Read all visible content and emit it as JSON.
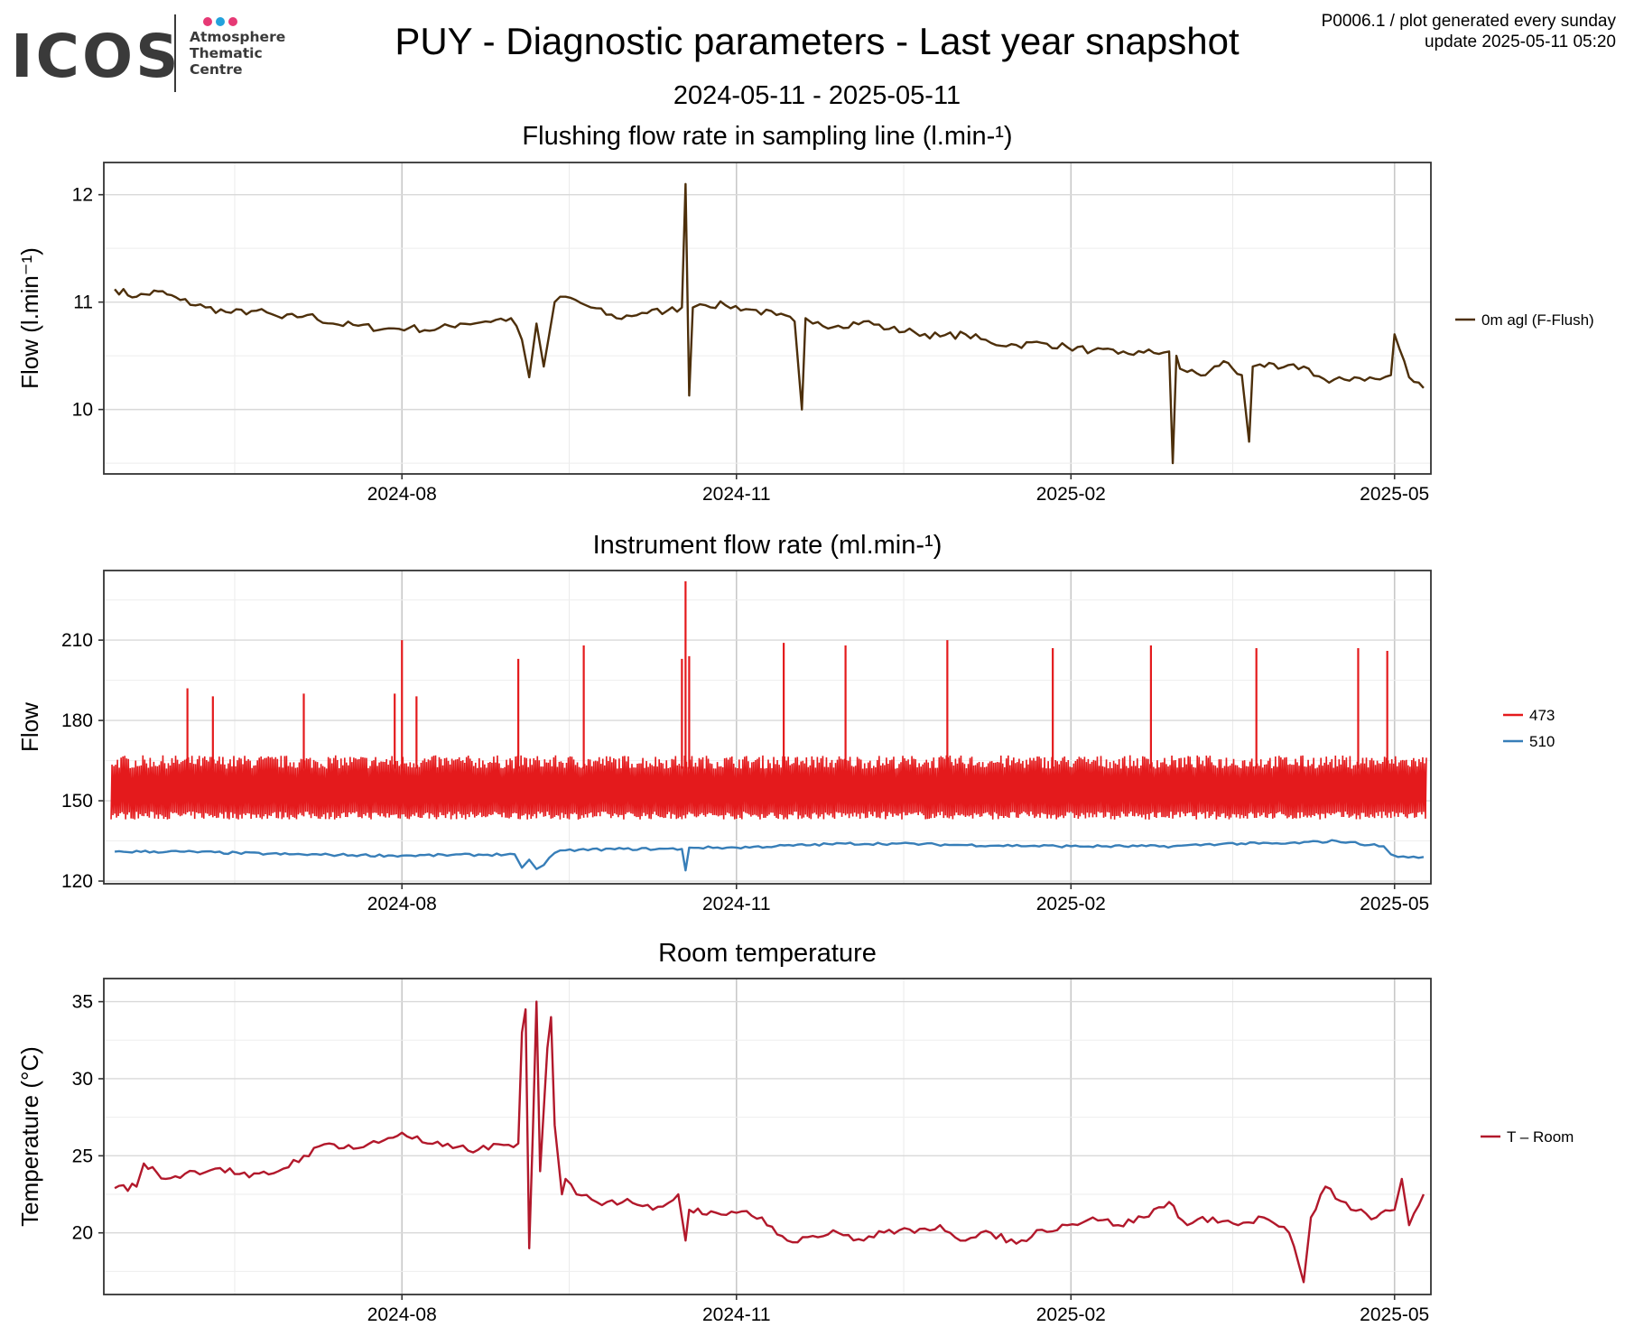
{
  "logo": {
    "word": "ICOS",
    "lines": [
      "Atmosphere",
      "Thematic",
      "Centre"
    ],
    "dot_colors": [
      "#e63975",
      "#23a2dc",
      "#e63975"
    ]
  },
  "header": {
    "title": "PUY - Diagnostic parameters - Last year snapshot",
    "date_range": "2024-05-11 - 2025-05-11",
    "meta_line1": "P0006.1 / plot generated every sunday",
    "meta_line2": "update  2025-05-11 05:20"
  },
  "chart_data": [
    {
      "type": "line",
      "title": "Flushing flow rate in sampling line (l.min-¹)",
      "ylabel": "Flow (l.min⁻¹)",
      "ylim": [
        9.4,
        12.3
      ],
      "yticks": [
        10,
        11,
        12
      ],
      "xlim": [
        "2024-05-11",
        "2025-05-11"
      ],
      "xticks": [
        "2024-08-01",
        "2024-11-01",
        "2025-02-01",
        "2025-05-01"
      ],
      "xtick_labels": [
        "2024-08",
        "2024-11",
        "2025-02",
        "2025-05"
      ],
      "grid": true,
      "legend": "right",
      "series": [
        {
          "name": "0m agl (F-Flush)",
          "color": "#4d2f0a",
          "x": [
            "2024-05-14",
            "2024-05-20",
            "2024-05-26",
            "2024-06-01",
            "2024-06-08",
            "2024-06-15",
            "2024-06-22",
            "2024-06-29",
            "2024-07-06",
            "2024-07-13",
            "2024-07-20",
            "2024-07-27",
            "2024-08-03",
            "2024-08-10",
            "2024-08-17",
            "2024-08-24",
            "2024-08-31",
            "2024-09-03",
            "2024-09-05",
            "2024-09-07",
            "2024-09-09",
            "2024-09-12",
            "2024-09-15",
            "2024-09-22",
            "2024-09-29",
            "2024-10-06",
            "2024-10-13",
            "2024-10-17",
            "2024-10-18",
            "2024-10-19",
            "2024-10-20",
            "2024-10-22",
            "2024-10-29",
            "2024-11-05",
            "2024-11-12",
            "2024-11-17",
            "2024-11-19",
            "2024-11-20",
            "2024-11-22",
            "2024-11-29",
            "2024-12-06",
            "2024-12-13",
            "2024-12-20",
            "2024-12-27",
            "2025-01-03",
            "2025-01-10",
            "2025-01-17",
            "2025-01-24",
            "2025-01-31",
            "2025-02-07",
            "2025-02-14",
            "2025-02-21",
            "2025-02-28",
            "2025-03-01",
            "2025-03-02",
            "2025-03-03",
            "2025-03-05",
            "2025-03-10",
            "2025-03-15",
            "2025-03-20",
            "2025-03-22",
            "2025-03-23",
            "2025-03-25",
            "2025-03-30",
            "2025-04-06",
            "2025-04-13",
            "2025-04-20",
            "2025-04-27",
            "2025-04-30",
            "2025-05-01",
            "2025-05-05",
            "2025-05-09"
          ],
          "values": [
            11.12,
            11.05,
            11.1,
            11.02,
            10.95,
            10.9,
            10.92,
            10.85,
            10.88,
            10.8,
            10.78,
            10.75,
            10.76,
            10.74,
            10.8,
            10.82,
            10.85,
            10.65,
            10.3,
            10.8,
            10.4,
            11.0,
            11.05,
            10.95,
            10.85,
            10.9,
            10.92,
            10.95,
            12.1,
            10.13,
            10.95,
            10.98,
            10.97,
            10.93,
            10.88,
            10.82,
            10.0,
            10.85,
            10.8,
            10.78,
            10.82,
            10.75,
            10.72,
            10.68,
            10.7,
            10.62,
            10.6,
            10.62,
            10.58,
            10.55,
            10.52,
            10.53,
            10.54,
            9.5,
            10.5,
            10.38,
            10.35,
            10.32,
            10.45,
            10.32,
            9.7,
            10.4,
            10.42,
            10.38,
            10.4,
            10.25,
            10.3,
            10.28,
            10.32,
            10.7,
            10.3,
            10.2
          ]
        }
      ]
    },
    {
      "type": "line",
      "title": "Instrument flow rate (ml.min-¹)",
      "ylabel": "Flow",
      "ylim": [
        119,
        236
      ],
      "yticks": [
        120,
        150,
        180,
        210
      ],
      "xlim": [
        "2024-05-11",
        "2025-05-11"
      ],
      "xticks": [
        "2024-08-01",
        "2024-11-01",
        "2025-02-01",
        "2025-05-01"
      ],
      "xtick_labels": [
        "2024-08",
        "2024-11",
        "2025-02",
        "2025-05"
      ],
      "grid": true,
      "legend": "right",
      "series": [
        {
          "name": "473",
          "color": "#e41a1c",
          "band_low": 145,
          "band_high": 162,
          "spikes": [
            {
              "x": "2024-06-03",
              "value": 192
            },
            {
              "x": "2024-06-10",
              "value": 189
            },
            {
              "x": "2024-07-05",
              "value": 190
            },
            {
              "x": "2024-07-30",
              "value": 190
            },
            {
              "x": "2024-08-01",
              "value": 210
            },
            {
              "x": "2024-08-05",
              "value": 189
            },
            {
              "x": "2024-09-02",
              "value": 203
            },
            {
              "x": "2024-09-20",
              "value": 208
            },
            {
              "x": "2024-10-17",
              "value": 203
            },
            {
              "x": "2024-10-18",
              "value": 232
            },
            {
              "x": "2024-10-19",
              "value": 204
            },
            {
              "x": "2024-11-14",
              "value": 209
            },
            {
              "x": "2024-12-01",
              "value": 208
            },
            {
              "x": "2024-12-29",
              "value": 210
            },
            {
              "x": "2025-01-27",
              "value": 207
            },
            {
              "x": "2025-02-23",
              "value": 208
            },
            {
              "x": "2025-03-24",
              "value": 207
            },
            {
              "x": "2025-04-21",
              "value": 207
            },
            {
              "x": "2025-04-29",
              "value": 206
            }
          ]
        },
        {
          "name": "510",
          "color": "#377eb8",
          "x": [
            "2024-05-14",
            "2024-06-01",
            "2024-07-01",
            "2024-08-01",
            "2024-09-01",
            "2024-09-03",
            "2024-09-05",
            "2024-09-07",
            "2024-09-09",
            "2024-09-12",
            "2024-09-15",
            "2024-10-01",
            "2024-10-17",
            "2024-10-18",
            "2024-10-19",
            "2024-11-01",
            "2024-12-01",
            "2024-12-15",
            "2025-01-01",
            "2025-02-01",
            "2025-03-01",
            "2025-03-15",
            "2025-04-01",
            "2025-04-15",
            "2025-04-28",
            "2025-04-30",
            "2025-05-02",
            "2025-05-09"
          ],
          "values": [
            131,
            131,
            130,
            129.5,
            130,
            125,
            128,
            124.5,
            126,
            130.5,
            131.5,
            132,
            132,
            124,
            132.5,
            132.5,
            134,
            134,
            133.5,
            133,
            133,
            134,
            134,
            135,
            133,
            130,
            129,
            129
          ]
        }
      ]
    },
    {
      "type": "line",
      "title": "Room temperature",
      "ylabel": "Temperature (°C)",
      "ylim": [
        16,
        36.5
      ],
      "yticks": [
        20,
        25,
        30,
        35
      ],
      "xlim": [
        "2024-05-11",
        "2025-05-11"
      ],
      "xticks": [
        "2024-08-01",
        "2024-11-01",
        "2025-02-01",
        "2025-05-01"
      ],
      "xtick_labels": [
        "2024-08",
        "2024-11",
        "2025-02",
        "2025-05"
      ],
      "grid": true,
      "legend": "right",
      "series": [
        {
          "name": "T – Room",
          "color": "#b2182b",
          "x": [
            "2024-05-14",
            "2024-05-20",
            "2024-05-22",
            "2024-05-28",
            "2024-06-05",
            "2024-06-12",
            "2024-06-20",
            "2024-06-28",
            "2024-07-05",
            "2024-07-12",
            "2024-07-20",
            "2024-07-27",
            "2024-08-01",
            "2024-08-08",
            "2024-08-15",
            "2024-08-22",
            "2024-08-29",
            "2024-09-02",
            "2024-09-03",
            "2024-09-04",
            "2024-09-05",
            "2024-09-06",
            "2024-09-07",
            "2024-09-08",
            "2024-09-10",
            "2024-09-11",
            "2024-09-12",
            "2024-09-14",
            "2024-09-15",
            "2024-09-18",
            "2024-09-25",
            "2024-10-02",
            "2024-10-09",
            "2024-10-16",
            "2024-10-18",
            "2024-10-19",
            "2024-10-25",
            "2024-11-01",
            "2024-11-08",
            "2024-11-15",
            "2024-11-22",
            "2024-11-29",
            "2024-12-06",
            "2024-12-13",
            "2024-12-20",
            "2024-12-27",
            "2025-01-03",
            "2025-01-10",
            "2025-01-17",
            "2025-01-24",
            "2025-01-31",
            "2025-02-07",
            "2025-02-14",
            "2025-02-21",
            "2025-02-28",
            "2025-03-05",
            "2025-03-12",
            "2025-03-19",
            "2025-03-26",
            "2025-04-02",
            "2025-04-06",
            "2025-04-08",
            "2025-04-12",
            "2025-04-19",
            "2025-04-26",
            "2025-05-01",
            "2025-05-03",
            "2025-05-05",
            "2025-05-09"
          ],
          "values": [
            22.9,
            23.0,
            24.5,
            23.5,
            24.0,
            24.2,
            23.6,
            24.0,
            25.0,
            25.8,
            25.5,
            26.0,
            26.5,
            25.8,
            25.5,
            25.4,
            25.7,
            25.8,
            33.0,
            34.5,
            19.0,
            26.5,
            35.0,
            24.0,
            32.0,
            34.0,
            27.0,
            22.5,
            23.5,
            22.5,
            21.8,
            22.2,
            21.5,
            22.5,
            19.5,
            21.5,
            21.4,
            21.3,
            21.0,
            19.5,
            19.8,
            20.0,
            19.5,
            20.2,
            20.0,
            20.5,
            19.5,
            20.0,
            19.3,
            20.2,
            20.5,
            21.0,
            20.5,
            21.0,
            22.0,
            20.5,
            21.0,
            20.5,
            21.0,
            20.0,
            16.8,
            21.0,
            23.0,
            21.5,
            21.0,
            21.5,
            23.5,
            20.5,
            22.5
          ]
        }
      ]
    }
  ]
}
